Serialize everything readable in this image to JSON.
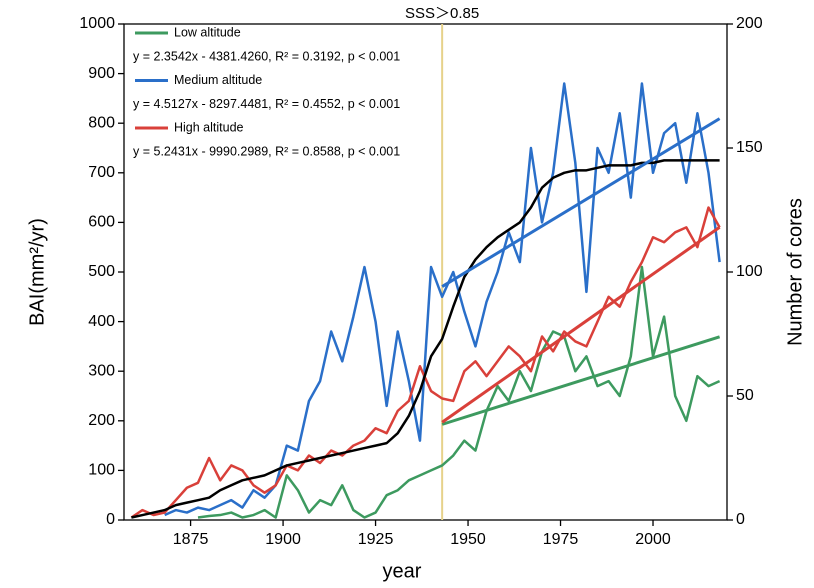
{
  "chart_data": {
    "type": "line",
    "xlabel": "year",
    "ylabel": "BAI(mm²/yr)",
    "y2label": "Number of cores",
    "xlim": [
      1857,
      2020
    ],
    "xticks": [
      1875,
      1900,
      1925,
      1950,
      1975,
      2000
    ],
    "ylim": [
      0,
      1000
    ],
    "yticks": [
      0,
      100,
      200,
      300,
      400,
      500,
      600,
      700,
      800,
      900,
      1000
    ],
    "y2lim": [
      0,
      200
    ],
    "y2ticks": [
      0,
      50,
      100,
      150,
      200
    ],
    "grid": false,
    "legend": "upper left",
    "annotation": {
      "x": 1943,
      "label": "SSS＞0.85",
      "color": "#e6d28a"
    },
    "x": [
      1859,
      1862,
      1865,
      1868,
      1871,
      1874,
      1877,
      1880,
      1883,
      1886,
      1889,
      1892,
      1895,
      1898,
      1901,
      1904,
      1907,
      1910,
      1913,
      1916,
      1919,
      1922,
      1925,
      1928,
      1931,
      1934,
      1937,
      1940,
      1943,
      1946,
      1949,
      1952,
      1955,
      1958,
      1961,
      1964,
      1967,
      1970,
      1973,
      1976,
      1979,
      1982,
      1985,
      1988,
      1991,
      1994,
      1997,
      2000,
      2003,
      2006,
      2009,
      2012,
      2015,
      2018
    ],
    "series": [
      {
        "name": "Low altitude",
        "color": "#3d9a5f",
        "equation": "y = 2.3542x - 4381.4260, R² = 0.3192, p < 0.001",
        "fit": {
          "x": [
            1943,
            2018
          ],
          "values": [
            192.8,
            369.4
          ]
        },
        "values": [
          null,
          null,
          null,
          null,
          null,
          null,
          5,
          8,
          10,
          15,
          5,
          10,
          20,
          5,
          90,
          60,
          15,
          40,
          30,
          70,
          20,
          5,
          15,
          50,
          60,
          80,
          90,
          100,
          110,
          130,
          160,
          140,
          220,
          270,
          240,
          300,
          260,
          340,
          380,
          370,
          300,
          330,
          270,
          280,
          250,
          330,
          510,
          330,
          410,
          250,
          200,
          290,
          270,
          280
        ]
      },
      {
        "name": "Medium altitude",
        "color": "#2a6fc9",
        "equation": "y = 4.5127x - 8297.4481, R² = 0.4552, p < 0.001",
        "fit": {
          "x": [
            1943,
            2018
          ],
          "values": [
            470.7,
            809.2
          ]
        },
        "values": [
          null,
          null,
          null,
          10,
          20,
          15,
          25,
          20,
          30,
          40,
          25,
          60,
          45,
          70,
          150,
          140,
          240,
          280,
          380,
          320,
          410,
          510,
          400,
          230,
          380,
          280,
          160,
          510,
          450,
          500,
          420,
          350,
          440,
          500,
          580,
          520,
          750,
          600,
          700,
          880,
          720,
          460,
          750,
          700,
          820,
          650,
          880,
          700,
          780,
          800,
          680,
          820,
          700,
          520
        ]
      },
      {
        "name": "High altitude",
        "color": "#d9403a",
        "equation": "y = 5.2431x - 9990.2989, R² = 0.8588, p < 0.001",
        "fit": {
          "x": [
            1943,
            2018
          ],
          "values": [
            197.0,
            590.3
          ]
        },
        "values": [
          5,
          20,
          10,
          15,
          40,
          65,
          75,
          125,
          80,
          110,
          100,
          70,
          55,
          70,
          110,
          100,
          130,
          115,
          140,
          130,
          150,
          160,
          185,
          175,
          220,
          240,
          310,
          260,
          245,
          240,
          300,
          320,
          290,
          320,
          350,
          330,
          300,
          370,
          340,
          380,
          360,
          350,
          400,
          450,
          430,
          480,
          520,
          570,
          560,
          580,
          590,
          550,
          630,
          590
        ]
      },
      {
        "color": "#000000",
        "axis": "y2",
        "values": [
          1,
          2,
          3,
          4,
          6,
          7,
          8,
          9,
          12,
          14,
          16,
          17,
          18,
          20,
          22,
          23,
          24,
          25,
          26,
          27,
          28,
          29,
          30,
          31,
          35,
          42,
          52,
          66,
          73,
          86,
          98,
          105,
          110,
          114,
          117,
          120,
          126,
          134,
          138,
          140,
          141,
          141,
          142,
          143,
          143,
          143,
          144,
          144,
          145,
          145,
          145,
          145,
          145,
          145
        ]
      }
    ]
  }
}
